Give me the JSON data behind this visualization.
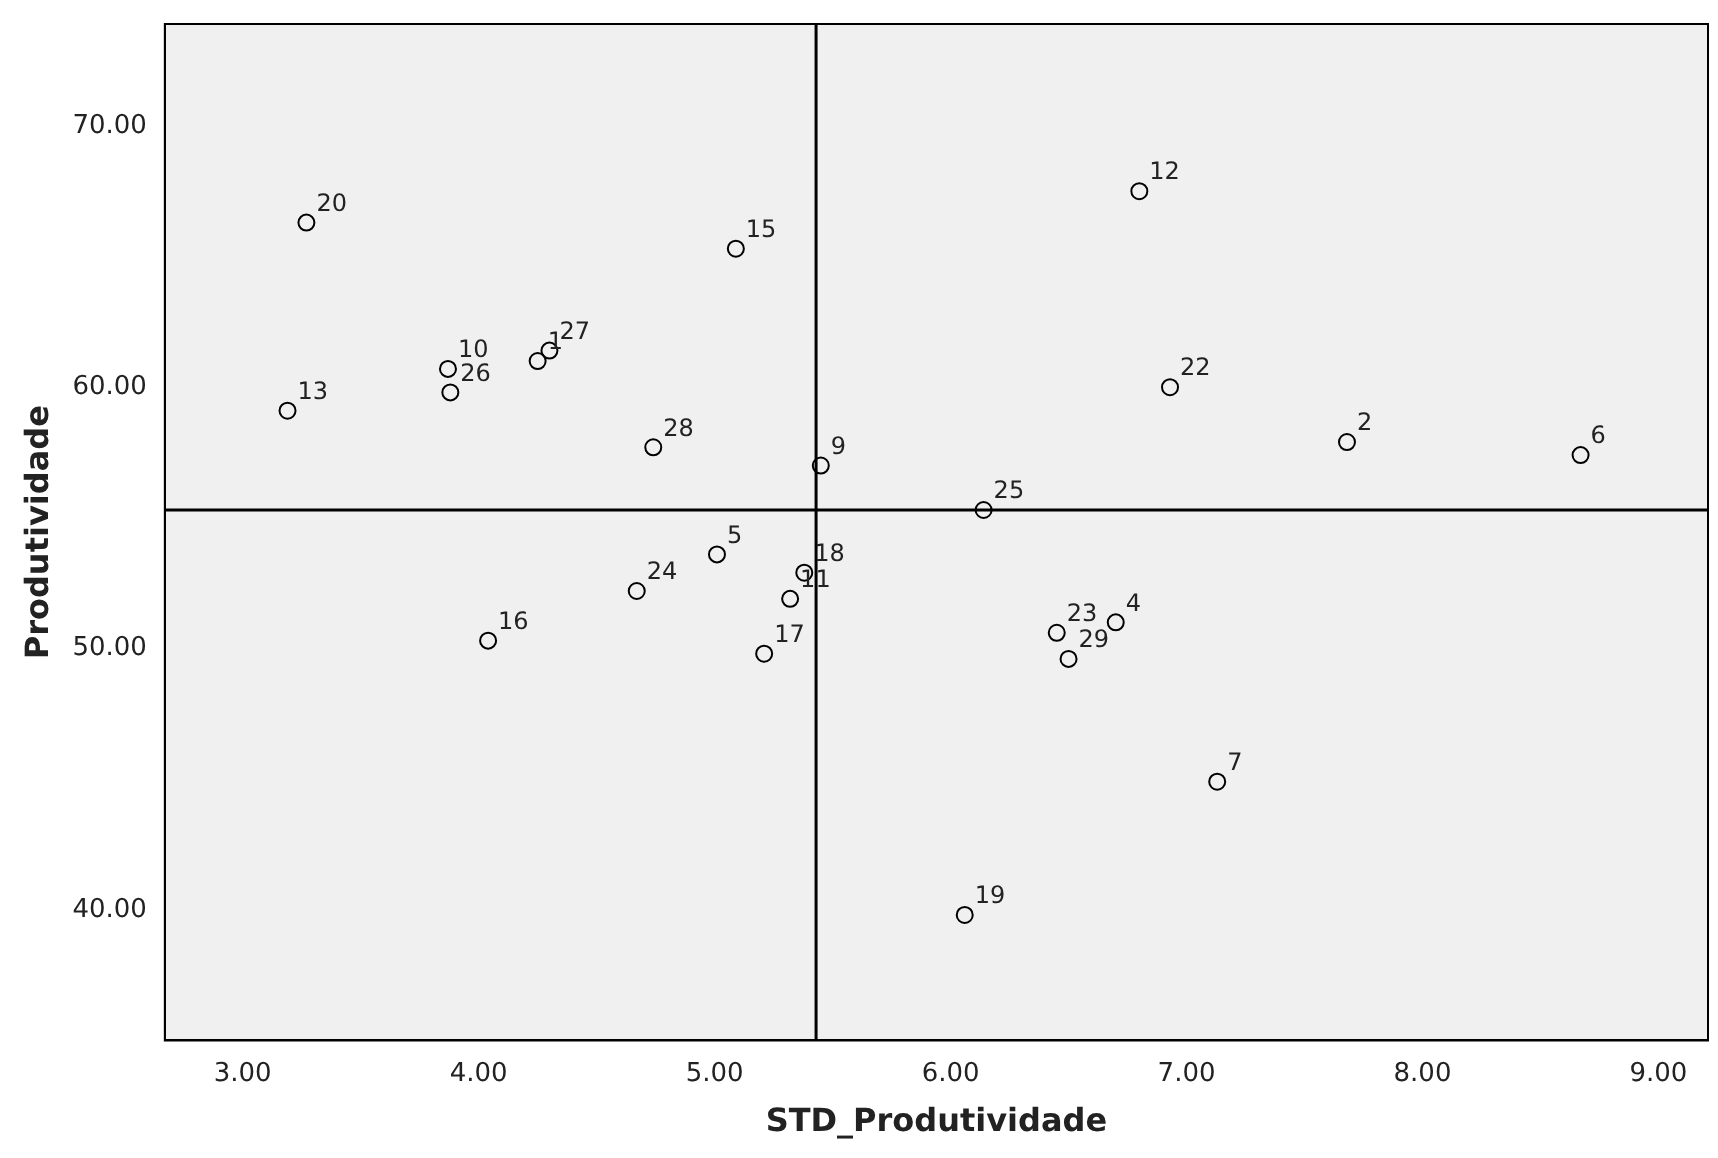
{
  "chart_data": {
    "type": "scatter",
    "xlabel": "STD_Produtividade",
    "ylabel": "Produtividade",
    "series": [
      {
        "color": "#000000",
        "x": [
          3.27,
          3.19,
          3.87,
          3.88,
          4.3,
          4.25,
          5.09,
          4.74,
          5.45,
          6.8,
          6.93,
          7.68,
          8.67,
          6.14,
          5.01,
          4.67,
          5.38,
          5.32,
          5.21,
          4.04,
          6.45,
          6.7,
          6.5,
          7.13,
          6.06
        ],
        "values": [
          66.3,
          59.1,
          60.7,
          59.8,
          61.4,
          61.0,
          65.3,
          57.7,
          57.0,
          67.5,
          60.0,
          57.9,
          57.4,
          55.3,
          53.6,
          52.2,
          52.9,
          51.9,
          49.8,
          50.3,
          50.6,
          51.0,
          49.6,
          44.9,
          39.8
        ]
      }
    ],
    "annotations": [
      {
        "text": "20",
        "x": 3.27,
        "y": 66.3
      },
      {
        "text": "13",
        "x": 3.19,
        "y": 59.1
      },
      {
        "text": "10",
        "x": 3.87,
        "y": 60.7
      },
      {
        "text": "26",
        "x": 3.88,
        "y": 59.8
      },
      {
        "text": "27",
        "x": 4.3,
        "y": 61.4
      },
      {
        "text": "1",
        "x": 4.25,
        "y": 61.0
      },
      {
        "text": "15",
        "x": 5.09,
        "y": 65.3
      },
      {
        "text": "28",
        "x": 4.74,
        "y": 57.7
      },
      {
        "text": "9",
        "x": 5.45,
        "y": 57.0
      },
      {
        "text": "12",
        "x": 6.8,
        "y": 67.5
      },
      {
        "text": "22",
        "x": 6.93,
        "y": 60.0
      },
      {
        "text": "2",
        "x": 7.68,
        "y": 57.9
      },
      {
        "text": "6",
        "x": 8.67,
        "y": 57.4
      },
      {
        "text": "25",
        "x": 6.14,
        "y": 55.3
      },
      {
        "text": "5",
        "x": 5.01,
        "y": 53.6
      },
      {
        "text": "24",
        "x": 4.67,
        "y": 52.2
      },
      {
        "text": "18",
        "x": 5.38,
        "y": 52.9
      },
      {
        "text": "11",
        "x": 5.32,
        "y": 51.9
      },
      {
        "text": "17",
        "x": 5.21,
        "y": 49.8
      },
      {
        "text": "16",
        "x": 4.04,
        "y": 50.3
      },
      {
        "text": "23",
        "x": 6.45,
        "y": 50.6
      },
      {
        "text": "4",
        "x": 6.7,
        "y": 51.0
      },
      {
        "text": "29",
        "x": 6.5,
        "y": 49.6
      },
      {
        "text": "7",
        "x": 7.13,
        "y": 44.9
      },
      {
        "text": "19",
        "x": 6.06,
        "y": 39.8
      }
    ],
    "xlim": [
      2.67,
      9.21
    ],
    "ylim": [
      35,
      73.9
    ],
    "xticks": [
      {
        "value": 3,
        "label": "3.00"
      },
      {
        "value": 4,
        "label": "4.00"
      },
      {
        "value": 5,
        "label": "5.00"
      },
      {
        "value": 6,
        "label": "6.00"
      },
      {
        "value": 7,
        "label": "7.00"
      },
      {
        "value": 8,
        "label": "8.00"
      },
      {
        "value": 9,
        "label": "9.00"
      }
    ],
    "yticks": [
      {
        "value": 40,
        "label": "40.00"
      },
      {
        "value": 50,
        "label": "50.00"
      },
      {
        "value": 60,
        "label": "60.00"
      },
      {
        "value": 70,
        "label": "70.00"
      }
    ],
    "ref_lines": [
      {
        "axis": "x",
        "value": 5.43,
        "color": "#000000"
      },
      {
        "axis": "y",
        "value": 55.3,
        "color": "#000000"
      }
    ],
    "marker": "circle",
    "grid": false,
    "legend": false
  }
}
